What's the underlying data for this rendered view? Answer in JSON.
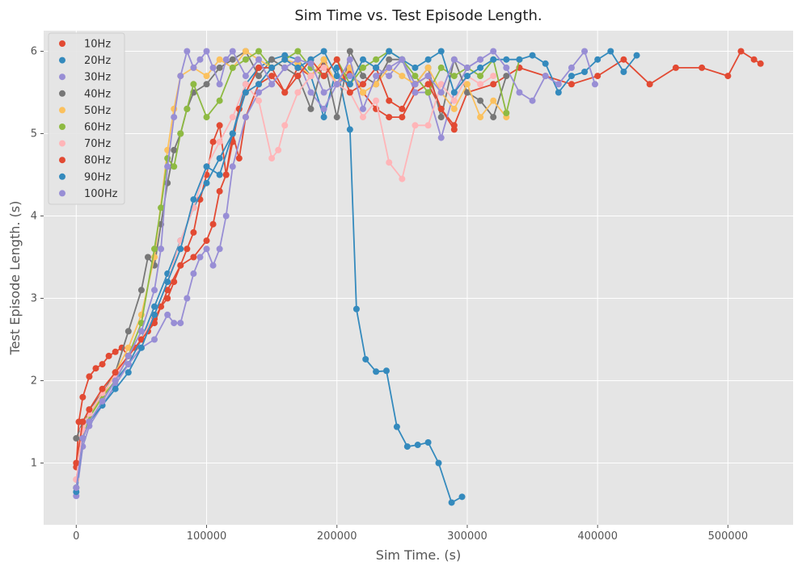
{
  "chart_data": {
    "type": "line",
    "title": "Sim Time vs. Test Episode Length.",
    "xlabel": "Sim Time. (s)",
    "ylabel": "Test Episode Length. (s)",
    "xlim": [
      -25000,
      550000
    ],
    "ylim": [
      0.25,
      6.25
    ],
    "xticks": [
      0,
      100000,
      200000,
      300000,
      400000,
      500000
    ],
    "xtick_labels": [
      "0",
      "100000",
      "200000",
      "300000",
      "400000",
      "500000"
    ],
    "yticks": [
      1,
      2,
      3,
      4,
      5,
      6
    ],
    "ytick_labels": [
      "1",
      "2",
      "3",
      "4",
      "5",
      "6"
    ],
    "grid": true,
    "legend_position": "top-left",
    "marker": "circle",
    "background": "#e5e5e5",
    "series": [
      {
        "name": "10Hz",
        "color": "#E24A33",
        "x": [
          0,
          2000,
          5000,
          10000,
          15000,
          20000,
          25000,
          30000,
          35000,
          40000,
          45000,
          50000,
          55000,
          60000,
          65000,
          70000,
          75000,
          80000,
          85000,
          90000,
          95000,
          100000,
          105000,
          110000,
          115000,
          120000,
          125000,
          130000,
          140000,
          150000,
          160000,
          170000,
          180000,
          190000,
          200000,
          210000,
          220000,
          230000,
          240000,
          250000,
          260000,
          270000,
          280000,
          290000,
          300000,
          320000,
          340000,
          360000,
          380000,
          400000,
          420000,
          440000,
          460000,
          480000,
          500000,
          510000,
          520000,
          525000
        ],
        "y": [
          0.95,
          1.5,
          1.8,
          2.05,
          2.15,
          2.2,
          2.3,
          2.35,
          2.4,
          2.3,
          2.4,
          2.5,
          2.6,
          2.75,
          2.9,
          3.0,
          3.2,
          3.4,
          3.6,
          3.8,
          4.2,
          4.5,
          4.9,
          5.1,
          4.5,
          5.0,
          4.7,
          5.2,
          5.6,
          5.7,
          5.5,
          5.8,
          5.7,
          5.85,
          5.6,
          5.75,
          5.5,
          5.3,
          5.2,
          5.2,
          5.5,
          5.6,
          5.3,
          5.1,
          5.5,
          5.6,
          5.8,
          5.7,
          5.6,
          5.7,
          5.9,
          5.6,
          5.8,
          5.8,
          5.7,
          6.0,
          5.9,
          5.85
        ]
      },
      {
        "name": "20Hz",
        "color": "#348ABD",
        "x": [
          0,
          5000,
          10000,
          20000,
          30000,
          40000,
          50000,
          60000,
          70000,
          80000,
          90000,
          100000,
          110000,
          120000,
          130000,
          140000,
          150000,
          160000,
          170000,
          180000,
          190000,
          200000,
          210000,
          215000,
          222000,
          230000,
          238000,
          246000,
          254000,
          262000,
          270000,
          278000,
          288000,
          296000
        ],
        "y": [
          0.7,
          1.4,
          1.6,
          1.8,
          2.0,
          2.2,
          2.5,
          2.9,
          3.3,
          3.7,
          4.1,
          4.4,
          4.7,
          5.0,
          5.6,
          5.8,
          5.9,
          5.95,
          5.9,
          5.7,
          5.2,
          5.8,
          5.05,
          2.87,
          2.26,
          2.11,
          2.12,
          1.44,
          1.2,
          1.22,
          1.25,
          1.0,
          0.52,
          0.59
        ]
      },
      {
        "name": "30Hz",
        "color": "#988ED5",
        "x": [
          0,
          5000,
          10000,
          20000,
          30000,
          40000,
          50000,
          60000,
          70000,
          75000,
          80000,
          85000,
          90000,
          95000,
          100000,
          105000,
          110000,
          115000,
          120000,
          130000,
          140000,
          150000,
          160000,
          170000,
          180000,
          190000,
          200000,
          210000,
          220000,
          230000,
          240000,
          250000,
          260000,
          270000,
          280000,
          290000,
          300000,
          310000
        ],
        "y": [
          0.6,
          1.2,
          1.45,
          1.7,
          1.95,
          2.2,
          2.4,
          2.5,
          2.8,
          2.7,
          2.7,
          3.0,
          3.3,
          3.5,
          3.6,
          3.4,
          3.6,
          4.0,
          4.6,
          5.2,
          5.5,
          5.6,
          5.8,
          5.9,
          5.5,
          5.3,
          5.6,
          5.7,
          5.6,
          5.8,
          5.7,
          5.9,
          5.5,
          5.5,
          4.95,
          5.5,
          5.8,
          5.9
        ]
      },
      {
        "name": "40Hz",
        "color": "#777777",
        "x": [
          0,
          5000,
          10000,
          20000,
          30000,
          40000,
          50000,
          55000,
          60000,
          65000,
          70000,
          75000,
          80000,
          85000,
          90000,
          100000,
          110000,
          120000,
          130000,
          140000,
          150000,
          160000,
          170000,
          180000,
          190000,
          200000,
          210000,
          220000,
          230000,
          240000,
          250000,
          260000,
          270000,
          280000,
          290000,
          300000,
          310000,
          320000,
          330000
        ],
        "y": [
          1.3,
          1.5,
          1.65,
          1.85,
          2.1,
          2.6,
          3.1,
          3.5,
          3.4,
          3.9,
          4.4,
          4.8,
          5.0,
          5.3,
          5.5,
          5.6,
          5.8,
          5.9,
          6.0,
          5.7,
          5.9,
          5.8,
          5.7,
          5.3,
          5.9,
          5.2,
          6.0,
          5.7,
          5.6,
          5.9,
          5.9,
          5.6,
          5.8,
          5.2,
          5.9,
          5.5,
          5.4,
          5.2,
          5.7
        ]
      },
      {
        "name": "50Hz",
        "color": "#FBC15E",
        "x": [
          0,
          5000,
          10000,
          20000,
          30000,
          40000,
          50000,
          60000,
          70000,
          75000,
          80000,
          90000,
          100000,
          110000,
          120000,
          130000,
          140000,
          150000,
          160000,
          170000,
          180000,
          190000,
          200000,
          210000,
          220000,
          230000,
          240000,
          250000,
          260000,
          270000,
          280000,
          290000,
          300000,
          310000,
          320000,
          330000
        ],
        "y": [
          0.8,
          1.4,
          1.6,
          1.8,
          2.1,
          2.4,
          2.8,
          3.5,
          4.8,
          5.3,
          5.7,
          5.8,
          5.7,
          5.9,
          5.8,
          6.0,
          5.9,
          5.8,
          5.9,
          5.85,
          5.7,
          5.9,
          5.6,
          5.8,
          5.5,
          5.6,
          5.8,
          5.7,
          5.6,
          5.8,
          5.5,
          5.3,
          5.6,
          5.2,
          5.4,
          5.2
        ]
      },
      {
        "name": "60Hz",
        "color": "#8EBA42",
        "x": [
          0,
          5000,
          10000,
          20000,
          30000,
          40000,
          50000,
          60000,
          65000,
          70000,
          75000,
          80000,
          85000,
          90000,
          100000,
          110000,
          120000,
          130000,
          140000,
          150000,
          160000,
          170000,
          180000,
          190000,
          200000,
          210000,
          220000,
          230000,
          240000,
          250000,
          260000,
          270000,
          280000,
          290000,
          300000,
          310000,
          320000,
          330000,
          340000
        ],
        "y": [
          0.7,
          1.3,
          1.55,
          1.8,
          2.0,
          2.3,
          2.7,
          3.6,
          4.1,
          4.7,
          4.6,
          5.0,
          5.3,
          5.6,
          5.2,
          5.4,
          5.8,
          5.9,
          6.0,
          5.8,
          5.9,
          6.0,
          5.8,
          5.7,
          5.9,
          5.6,
          5.8,
          5.9,
          6.0,
          5.9,
          5.7,
          5.5,
          5.8,
          5.7,
          5.8,
          5.7,
          5.9,
          5.25,
          5.9
        ]
      },
      {
        "name": "70Hz",
        "color": "#FFB5B8",
        "x": [
          0,
          5000,
          10000,
          20000,
          30000,
          40000,
          50000,
          60000,
          70000,
          80000,
          90000,
          100000,
          110000,
          120000,
          130000,
          140000,
          150000,
          155000,
          160000,
          170000,
          180000,
          190000,
          200000,
          210000,
          220000,
          230000,
          240000,
          250000,
          260000,
          270000,
          280000,
          290000,
          300000,
          310000,
          320000
        ],
        "y": [
          0.8,
          1.4,
          1.6,
          1.85,
          2.05,
          2.3,
          2.5,
          2.8,
          3.2,
          3.7,
          4.1,
          4.6,
          4.9,
          5.2,
          5.6,
          5.4,
          4.7,
          4.8,
          5.1,
          5.5,
          5.7,
          5.8,
          5.6,
          5.5,
          5.2,
          5.4,
          4.65,
          4.45,
          5.1,
          5.1,
          5.6,
          5.4,
          5.7,
          5.6,
          5.7
        ]
      },
      {
        "name": "80Hz",
        "color": "#E24A33",
        "x": [
          0,
          5000,
          10000,
          20000,
          30000,
          40000,
          50000,
          60000,
          70000,
          80000,
          90000,
          100000,
          105000,
          110000,
          115000,
          120000,
          125000,
          130000,
          140000,
          150000,
          160000,
          170000,
          180000,
          190000,
          200000,
          210000,
          220000,
          230000,
          240000,
          250000,
          260000,
          270000,
          280000,
          290000
        ],
        "y": [
          1.0,
          1.5,
          1.65,
          1.9,
          2.1,
          2.3,
          2.5,
          2.7,
          3.1,
          3.4,
          3.5,
          3.7,
          3.9,
          4.3,
          4.5,
          4.9,
          5.3,
          5.5,
          5.8,
          5.8,
          5.5,
          5.7,
          5.9,
          5.7,
          5.9,
          5.5,
          5.6,
          5.8,
          5.4,
          5.3,
          5.6,
          5.7,
          5.3,
          5.05
        ]
      },
      {
        "name": "90Hz",
        "color": "#348ABD",
        "x": [
          0,
          5000,
          10000,
          20000,
          30000,
          40000,
          50000,
          60000,
          70000,
          80000,
          90000,
          100000,
          110000,
          120000,
          130000,
          140000,
          150000,
          160000,
          170000,
          180000,
          190000,
          200000,
          210000,
          220000,
          230000,
          240000,
          250000,
          260000,
          270000,
          280000,
          290000,
          300000,
          310000,
          320000,
          330000,
          340000,
          350000,
          360000,
          370000,
          380000,
          390000,
          400000,
          410000,
          420000,
          430000
        ],
        "y": [
          0.65,
          1.3,
          1.5,
          1.7,
          1.9,
          2.1,
          2.4,
          2.8,
          3.2,
          3.6,
          4.2,
          4.6,
          4.5,
          5.0,
          5.5,
          5.6,
          5.8,
          5.9,
          5.8,
          5.9,
          6.0,
          5.7,
          5.6,
          5.9,
          5.8,
          6.0,
          5.9,
          5.8,
          5.9,
          6.0,
          5.5,
          5.7,
          5.8,
          5.9,
          5.9,
          5.9,
          5.95,
          5.85,
          5.5,
          5.7,
          5.75,
          5.9,
          6.0,
          5.75,
          5.95
        ]
      },
      {
        "name": "100Hz",
        "color": "#988ED5",
        "x": [
          0,
          5000,
          10000,
          20000,
          30000,
          40000,
          50000,
          60000,
          65000,
          70000,
          75000,
          80000,
          85000,
          90000,
          95000,
          100000,
          105000,
          110000,
          115000,
          120000,
          130000,
          140000,
          150000,
          160000,
          170000,
          180000,
          190000,
          200000,
          210000,
          220000,
          230000,
          240000,
          250000,
          260000,
          270000,
          280000,
          290000,
          300000,
          310000,
          320000,
          330000,
          340000,
          350000,
          360000,
          370000,
          380000,
          390000,
          398000
        ],
        "y": [
          0.7,
          1.3,
          1.5,
          1.75,
          2.0,
          2.3,
          2.6,
          3.1,
          3.6,
          4.6,
          5.2,
          5.7,
          6.0,
          5.8,
          5.9,
          6.0,
          5.8,
          5.6,
          5.9,
          6.0,
          5.7,
          5.9,
          5.6,
          5.8,
          5.9,
          5.85,
          5.5,
          5.6,
          5.9,
          5.3,
          5.7,
          5.8,
          5.9,
          5.6,
          5.7,
          5.5,
          5.9,
          5.8,
          5.9,
          6.0,
          5.8,
          5.5,
          5.4,
          5.7,
          5.6,
          5.8,
          6.0,
          5.6
        ]
      }
    ]
  }
}
